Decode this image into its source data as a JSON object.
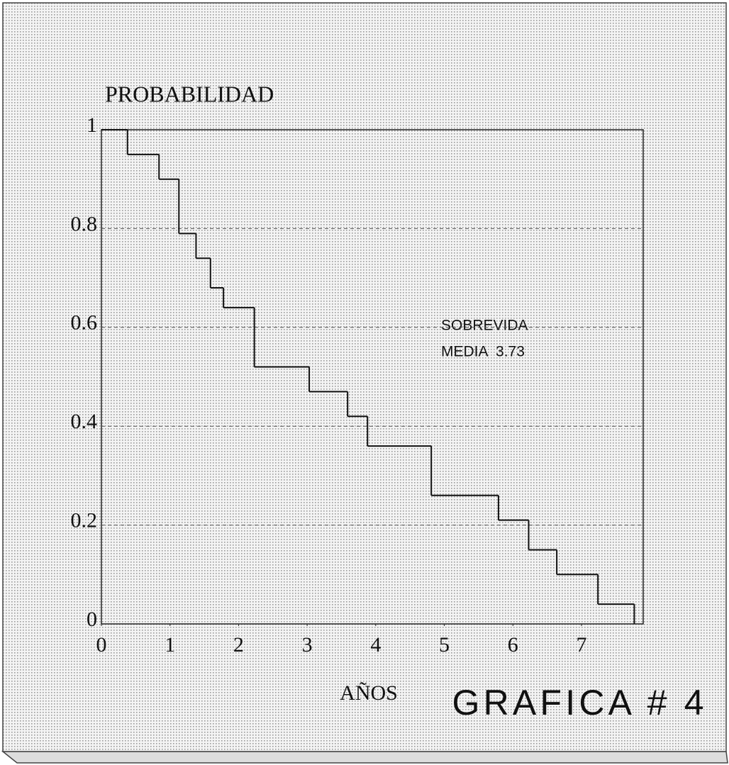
{
  "chart_data": {
    "type": "step",
    "title": "GRAFICA # 4",
    "y_label": "PROBABILIDAD",
    "x_label": "AÑOS",
    "annotation": [
      "SOBREVIDA",
      "MEDIA  3.73"
    ],
    "series": [
      {
        "color": "#111111",
        "x": [
          0,
          0.38,
          0.84,
          1.13,
          1.38,
          1.59,
          1.78,
          2.23,
          3.03,
          3.59,
          3.88,
          4.81,
          5.79,
          6.23,
          6.64,
          7.24,
          7.77
        ],
        "values": [
          1,
          0.95,
          0.9,
          0.79,
          0.74,
          0.68,
          0.64,
          0.52,
          0.47,
          0.42,
          0.36,
          0.26,
          0.21,
          0.15,
          0.1,
          0.04,
          0
        ]
      }
    ],
    "xlim": [
      0,
      7.9
    ],
    "ylim": [
      0,
      1
    ],
    "xticks": [
      0,
      1,
      2,
      3,
      4,
      5,
      6,
      7
    ],
    "yticks": [
      0,
      0.2,
      0.4,
      0.6,
      0.8,
      1
    ],
    "grid": true
  }
}
